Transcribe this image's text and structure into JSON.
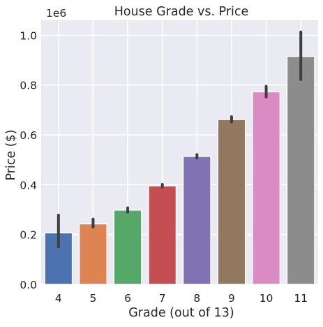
{
  "chart_data": {
    "type": "bar",
    "title": "House Grade vs. Price",
    "xlabel": "Grade (out of 13)",
    "ylabel": "Price ($)",
    "y_offset_label": "1e6",
    "ylim": [
      0,
      1.06
    ],
    "yticks": [
      0.0,
      0.2,
      0.4,
      0.6,
      0.8,
      1.0
    ],
    "ytick_labels": [
      "0.0",
      "0.2",
      "0.4",
      "0.6",
      "0.8",
      "1.0"
    ],
    "grid": true,
    "legend": "none",
    "categories": [
      "4",
      "5",
      "6",
      "7",
      "8",
      "9",
      "10",
      "11"
    ],
    "values": [
      0.207,
      0.243,
      0.298,
      0.396,
      0.514,
      0.662,
      0.773,
      0.915
    ],
    "error_bars": [
      [
        0.15,
        0.278
      ],
      [
        0.23,
        0.262
      ],
      [
        0.29,
        0.307
      ],
      [
        0.39,
        0.401
      ],
      [
        0.507,
        0.521
      ],
      [
        0.652,
        0.673
      ],
      [
        0.752,
        0.795
      ],
      [
        0.822,
        1.013
      ]
    ],
    "colors": [
      "#4c72b0",
      "#dd8452",
      "#55a868",
      "#c44e52",
      "#8172b3",
      "#937860",
      "#da8bc3",
      "#8c8c8c"
    ],
    "style": {
      "background": "#eaeaf2",
      "grid_color": "#ffffff",
      "errorbar_color": "#3f3f3f"
    }
  }
}
